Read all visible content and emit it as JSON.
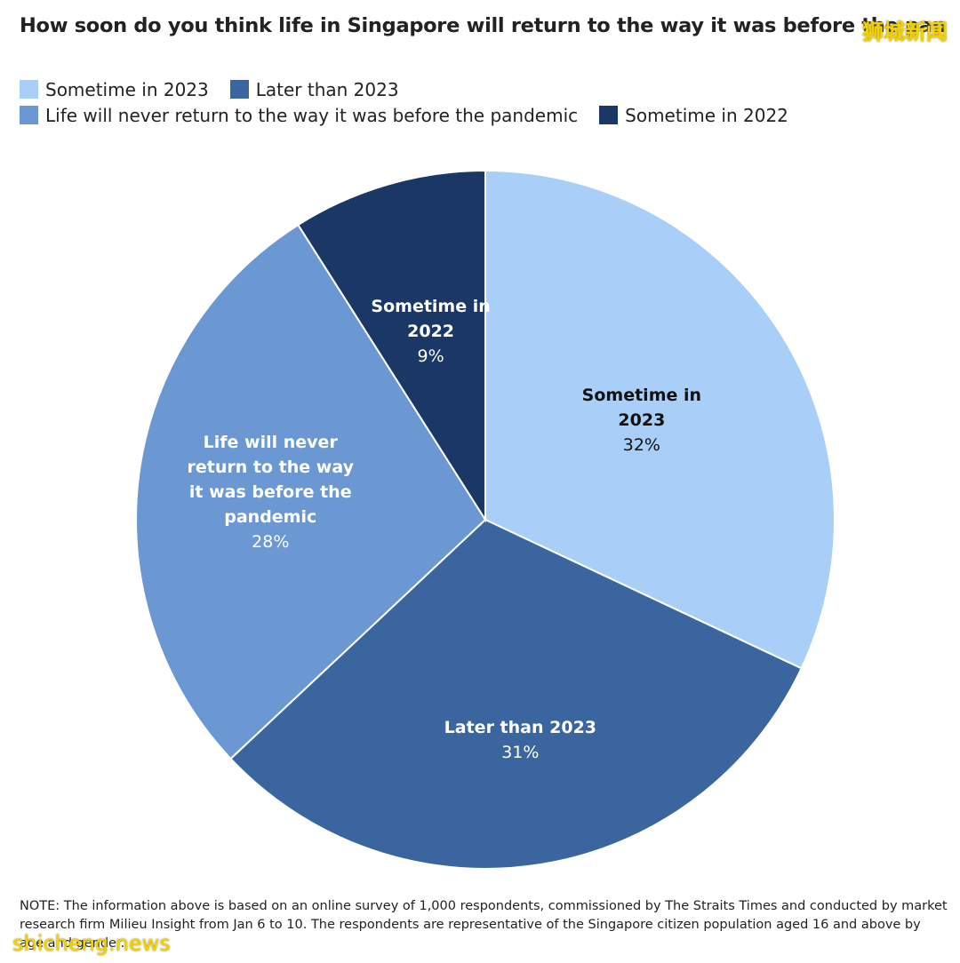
{
  "chart_data": {
    "type": "pie",
    "title": "How soon do you think life in Singapore will return to the way it was before the pandemic?",
    "categories": [
      "Sometime in 2023",
      "Later than 2023",
      "Life will never return to the way it was before the pandemic",
      "Sometime in 2022"
    ],
    "values": [
      32,
      31,
      28,
      9
    ],
    "value_labels": [
      "32%",
      "31%",
      "28%",
      "9%"
    ],
    "slice_labels": [
      [
        "Sometime in",
        "2023"
      ],
      [
        "Later than 2023"
      ],
      [
        "Life will never",
        "return to the way",
        "it was before the",
        "pandemic"
      ],
      [
        "Sometime in",
        "2022"
      ]
    ],
    "colors": [
      "#a9cff8",
      "#3a659f",
      "#6b97d3",
      "#1a3766"
    ],
    "label_colors": [
      "#111111",
      "#ffffff",
      "#ffffff",
      "#ffffff"
    ],
    "legend": {
      "placement": "top-left",
      "rows": [
        [
          {
            "label": "Sometime in 2023",
            "color": "#a9cff8"
          },
          {
            "label": "Later than 2023",
            "color": "#3a659f"
          }
        ],
        [
          {
            "label": "Life will never return to the way it was before the pandemic",
            "color": "#6b97d3"
          },
          {
            "label": "Sometime in 2022",
            "color": "#1a3766"
          }
        ]
      ]
    }
  },
  "note": "NOTE: The information above is based on an online survey of 1,000 respondents, commissioned by The Straits Times and conducted by market research firm Milieu Insight from Jan 6 to 10. The respondents are representative of the Singapore citizen population aged 16 and above by age and gender.",
  "watermarks": {
    "top": "狮城新闻",
    "bottom": "shicheng.news"
  }
}
